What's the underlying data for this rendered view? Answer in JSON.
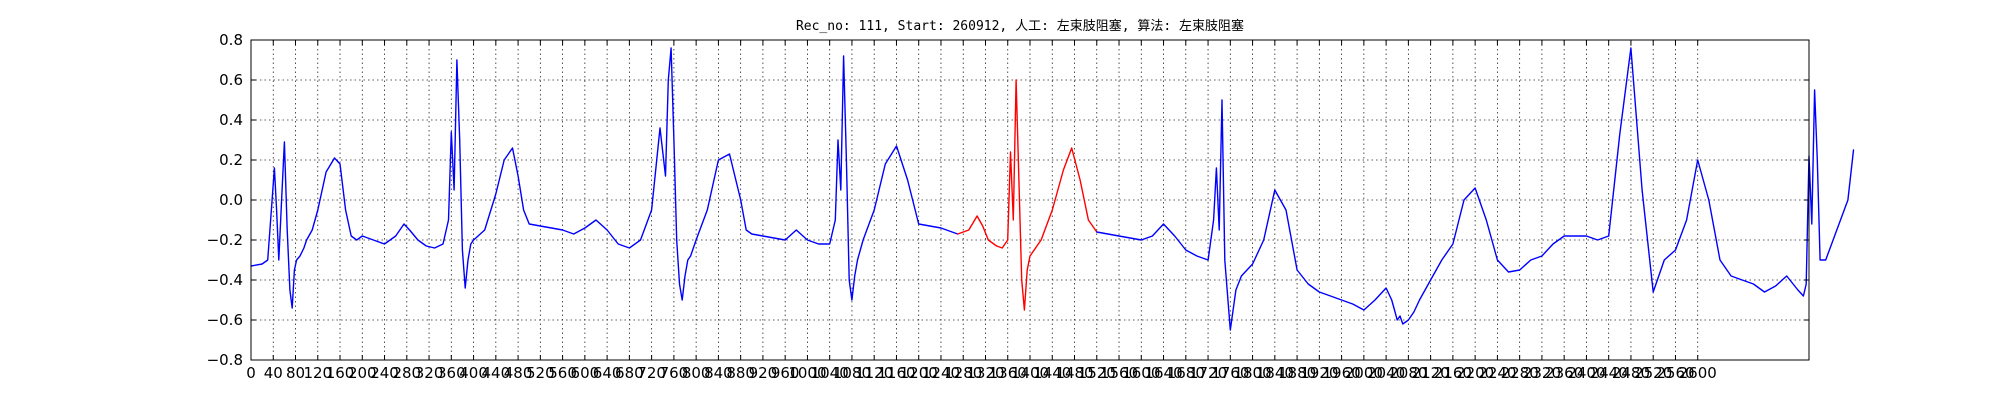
{
  "chart_data": {
    "type": "line",
    "title": "Rec_no: 111, Start: 260912, 人工: 左束肢阻塞, 算法: 左束肢阻塞",
    "xlabel": "",
    "ylabel": "",
    "xlim": [
      0,
      2800
    ],
    "ylim": [
      -0.8,
      0.8
    ],
    "grid": true,
    "yticks": [
      "0.8",
      "0.6",
      "0.4",
      "0.2",
      "0.0",
      "−0.2",
      "−0.4",
      "−0.6",
      "−0.8"
    ],
    "ytick_values": [
      0.8,
      0.6,
      0.4,
      0.2,
      0.0,
      -0.2,
      -0.4,
      -0.6,
      -0.8
    ],
    "xtick_values": [
      0,
      40,
      80,
      120,
      160,
      200,
      240,
      280,
      320,
      360,
      400,
      440,
      480,
      520,
      560,
      600,
      640,
      680,
      720,
      760,
      800,
      840,
      880,
      920,
      960,
      1000,
      1040,
      1080,
      1120,
      1160,
      1200,
      1240,
      1280,
      1320,
      1360,
      1400,
      1440,
      1480,
      1520,
      1560,
      1600,
      1640,
      1680,
      1720,
      1760,
      1800,
      1840,
      1880,
      1920,
      1960,
      2000,
      2040,
      2080,
      2120,
      2160,
      2200,
      2240,
      2280,
      2320,
      2360,
      2400,
      2440,
      2480,
      2520,
      2560,
      2600
    ],
    "xticks": [
      "0",
      "40",
      "80",
      "120",
      "160",
      "200",
      "240",
      "280",
      "320",
      "360",
      "400",
      "440",
      "480",
      "520",
      "560",
      "600",
      "640",
      "680",
      "720",
      "760",
      "800",
      "840",
      "880",
      "920",
      "960",
      "1000",
      "1040",
      "1080",
      "1120",
      "1160",
      "1200",
      "1240",
      "1280",
      "1320",
      "1360",
      "1400",
      "1440",
      "1480",
      "1520",
      "1560",
      "1600",
      "1640",
      "1680",
      "1720",
      "1760",
      "1800",
      "1840",
      "1880",
      "1920",
      "1960",
      "2000",
      "2040",
      "2080",
      "2120",
      "2160",
      "2200",
      "2240",
      "2280",
      "2320",
      "2360",
      "2400",
      "2440",
      "2480",
      "2520",
      "2560",
      "2600"
    ],
    "series": [
      {
        "color": "#0000ff",
        "x": [
          0,
          20,
          30,
          38,
          42,
          46,
          50,
          55,
          60,
          65,
          70,
          74,
          78,
          82,
          88,
          95,
          100,
          110,
          120,
          135,
          150,
          160,
          170,
          180,
          190,
          200,
          220,
          240,
          260,
          275,
          285,
          300,
          315,
          330,
          345,
          355,
          360,
          365,
          370,
          375,
          380,
          385,
          390,
          395,
          400,
          420,
          440,
          455,
          470,
          480,
          490,
          500,
          520,
          540,
          560,
          580,
          600,
          620,
          640,
          660,
          680,
          700,
          720,
          735,
          745,
          750,
          755,
          760,
          765,
          770,
          775,
          780,
          785,
          790,
          800,
          820,
          840,
          860,
          880,
          890,
          900,
          920,
          940,
          960,
          980,
          1000,
          1020,
          1040,
          1050,
          1055,
          1060,
          1065,
          1070,
          1075,
          1080,
          1085,
          1090,
          1100,
          1120,
          1140,
          1160,
          1180,
          1200,
          1220,
          1240,
          1260,
          1270
        ],
        "y": [
          -0.33,
          -0.32,
          -0.3,
          0.0,
          0.16,
          -0.05,
          -0.3,
          0.0,
          0.29,
          -0.15,
          -0.45,
          -0.54,
          -0.35,
          -0.3,
          -0.28,
          -0.24,
          -0.2,
          -0.15,
          -0.05,
          0.14,
          0.21,
          0.18,
          -0.05,
          -0.18,
          -0.2,
          -0.18,
          -0.2,
          -0.22,
          -0.18,
          -0.12,
          -0.15,
          -0.2,
          -0.23,
          -0.24,
          -0.22,
          -0.1,
          0.34,
          0.05,
          0.7,
          0.3,
          -0.25,
          -0.44,
          -0.3,
          -0.22,
          -0.2,
          -0.15,
          0.03,
          0.2,
          0.26,
          0.12,
          -0.05,
          -0.12,
          -0.13,
          -0.14,
          -0.15,
          -0.17,
          -0.14,
          -0.1,
          -0.15,
          -0.22,
          -0.24,
          -0.2,
          -0.05,
          0.36,
          0.12,
          0.6,
          0.76,
          0.3,
          -0.2,
          -0.42,
          -0.5,
          -0.38,
          -0.3,
          -0.28,
          -0.2,
          -0.05,
          0.2,
          0.23,
          0.0,
          -0.15,
          -0.17,
          -0.18,
          -0.19,
          -0.2,
          -0.15,
          -0.2,
          -0.22,
          -0.22,
          -0.1,
          0.3,
          0.05,
          0.72,
          0.2,
          -0.4,
          -0.5,
          -0.38,
          -0.3,
          -0.2,
          -0.05,
          0.18,
          0.27,
          0.1,
          -0.12,
          -0.13,
          -0.14,
          -0.16,
          -0.17
        ]
      },
      {
        "color": "#ff0000",
        "x": [
          1270,
          1290,
          1305,
          1315,
          1325,
          1340,
          1350,
          1360,
          1365,
          1370,
          1375,
          1380,
          1385,
          1390,
          1395,
          1400,
          1420,
          1440,
          1460,
          1475,
          1490,
          1505,
          1520
        ],
        "y": [
          -0.17,
          -0.15,
          -0.08,
          -0.13,
          -0.2,
          -0.23,
          -0.24,
          -0.2,
          0.24,
          -0.1,
          0.6,
          0.1,
          -0.4,
          -0.55,
          -0.35,
          -0.28,
          -0.2,
          -0.05,
          0.15,
          0.26,
          0.1,
          -0.1,
          -0.16
        ]
      },
      {
        "color": "#0000ff",
        "x": [
          1520,
          1540,
          1560,
          1580,
          1600,
          1620,
          1640,
          1660,
          1680,
          1700,
          1720,
          1730,
          1735,
          1740,
          1745,
          1750,
          1760,
          1770,
          1780,
          1800,
          1820,
          1840,
          1860,
          1880,
          1900,
          1920,
          1940,
          1960,
          1980,
          2000,
          2020,
          2040,
          2050,
          2055,
          2060,
          2065,
          2070,
          2080,
          2090,
          2100,
          2120,
          2140,
          2160,
          2180,
          2200,
          2220,
          2240,
          2260,
          2280,
          2300,
          2320,
          2340,
          2360,
          2380,
          2400,
          2420,
          2440,
          2460,
          2480,
          2500,
          2520,
          2540,
          2560,
          2580,
          2600,
          2620,
          2640,
          2660,
          2680,
          2700,
          2720,
          2740,
          2760,
          2780,
          2790,
          2795,
          2800,
          2805,
          2810,
          2815,
          2820,
          2830,
          2850,
          2870,
          2880
        ],
        "y": [
          -0.16,
          -0.17,
          -0.18,
          -0.19,
          -0.2,
          -0.18,
          -0.12,
          -0.18,
          -0.25,
          -0.28,
          -0.3,
          -0.1,
          0.16,
          -0.15,
          0.5,
          -0.3,
          -0.65,
          -0.45,
          -0.38,
          -0.32,
          -0.2,
          0.05,
          -0.05,
          -0.35,
          -0.42,
          -0.46,
          -0.48,
          -0.5,
          -0.52,
          -0.55,
          -0.5,
          -0.44,
          -0.5,
          -0.55,
          -0.6,
          -0.58,
          -0.62,
          -0.6,
          -0.56,
          -0.5,
          -0.4,
          -0.3,
          -0.22,
          0.0,
          0.06,
          -0.1,
          -0.3,
          -0.36,
          -0.35,
          -0.3,
          -0.28,
          -0.22,
          -0.18,
          -0.18,
          -0.18,
          -0.2,
          -0.18,
          0.33,
          0.76,
          0.05,
          -0.46,
          -0.3,
          -0.25,
          -0.1,
          0.2,
          0.0,
          -0.3,
          -0.38,
          -0.4,
          -0.42,
          -0.46,
          -0.43,
          -0.38,
          -0.45,
          -0.48,
          -0.42,
          0.22,
          -0.12,
          0.55,
          0.2,
          -0.3,
          -0.3,
          -0.15,
          0.0,
          0.25
        ]
      }
    ]
  }
}
